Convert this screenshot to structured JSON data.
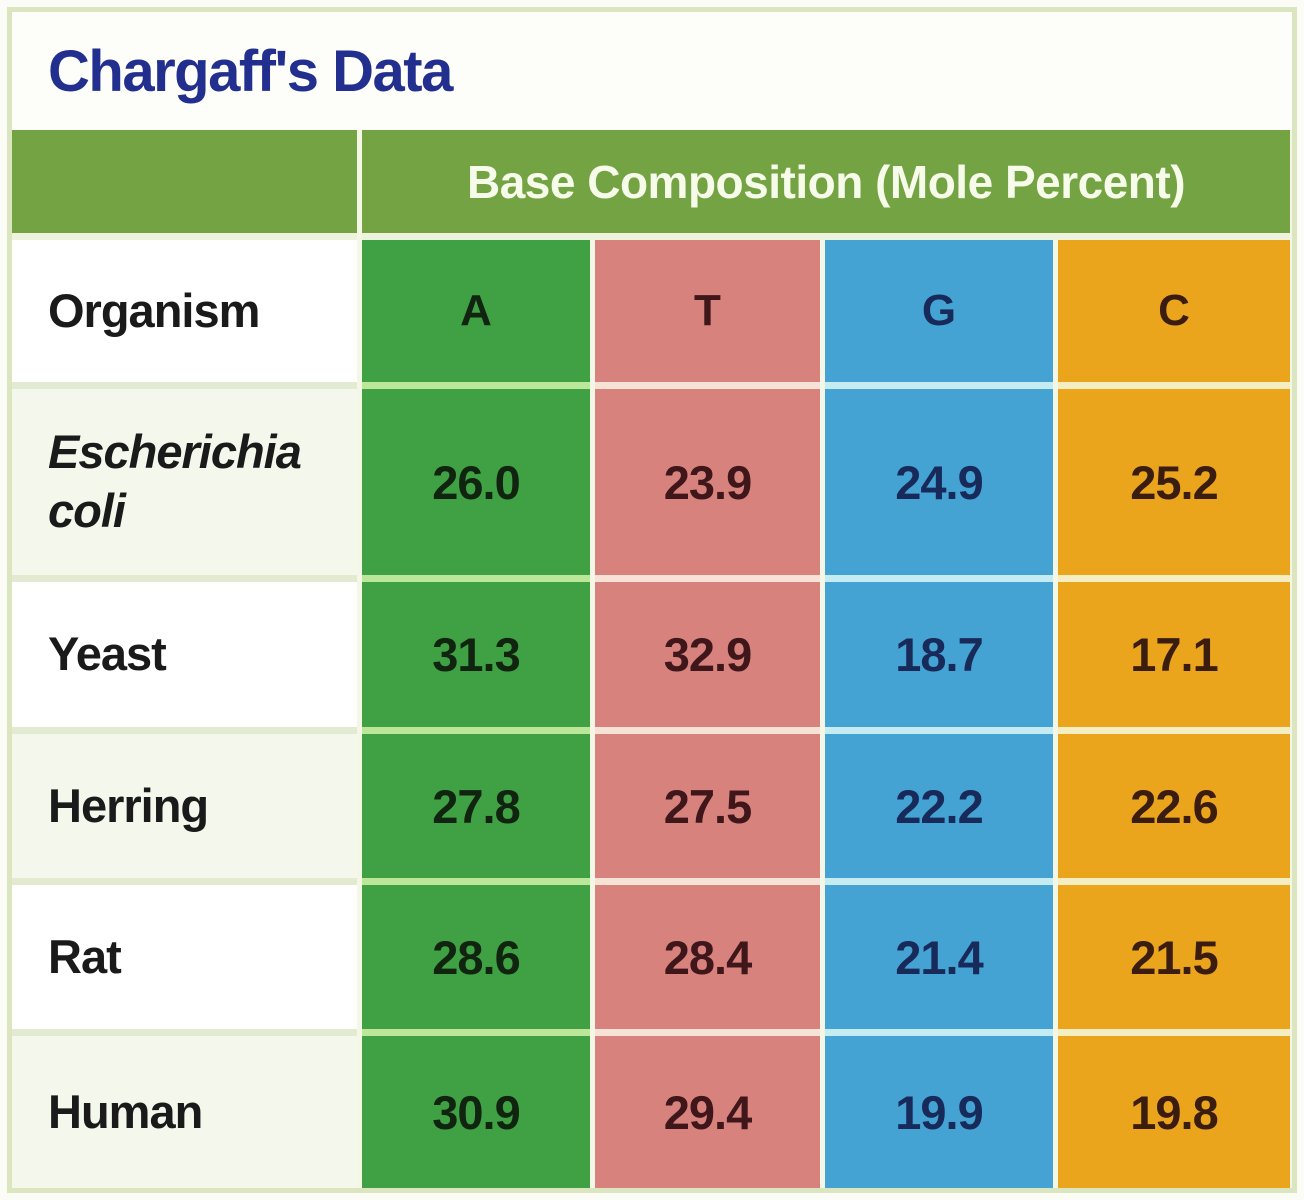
{
  "title": "Chargaff's Data",
  "table": {
    "span_header": "Base Composition (Mole Percent)",
    "organism_header": "Organism",
    "columns": [
      {
        "label": "A",
        "bg": "#3fa044",
        "separator": "#bce798",
        "text": "#10240f"
      },
      {
        "label": "T",
        "bg": "#d8827e",
        "separator": "#f6e3d6",
        "text": "#3f161a"
      },
      {
        "label": "G",
        "bg": "#45a3d4",
        "separator": "#c5ecf2",
        "text": "#172a5a"
      },
      {
        "label": "C",
        "bg": "#eaa51d",
        "separator": "#f5eec2",
        "text": "#3a1d0e"
      }
    ],
    "rows": [
      {
        "organism": "Escherichia coli",
        "italic": true,
        "values": [
          "26.0",
          "23.9",
          "24.9",
          "25.2"
        ]
      },
      {
        "organism": "Yeast",
        "italic": false,
        "values": [
          "31.3",
          "32.9",
          "18.7",
          "17.1"
        ]
      },
      {
        "organism": "Herring",
        "italic": false,
        "values": [
          "27.8",
          "27.5",
          "22.2",
          "22.6"
        ]
      },
      {
        "organism": "Rat",
        "italic": false,
        "values": [
          "28.6",
          "28.4",
          "21.4",
          "21.5"
        ]
      },
      {
        "organism": "Human",
        "italic": false,
        "values": [
          "30.9",
          "29.4",
          "19.9",
          "19.8"
        ]
      }
    ]
  },
  "colors": {
    "title_text": "#232f8e",
    "band_bg": "#74a343",
    "band_text": "#f7fbe9",
    "frame_border": "#dbe6c0",
    "label_tint_bg": "#f4f7eb",
    "label_separator": "#e2ebd2",
    "band_separator": "#edf3dd"
  },
  "chart_data": {
    "type": "table",
    "title": "Chargaff's Data",
    "subtitle": "Base Composition (Mole Percent)",
    "row_header": "Organism",
    "categories": [
      "Escherichia coli",
      "Yeast",
      "Herring",
      "Rat",
      "Human"
    ],
    "series": [
      {
        "name": "A",
        "values": [
          26.0,
          31.3,
          27.8,
          28.6,
          30.9
        ]
      },
      {
        "name": "T",
        "values": [
          23.9,
          32.9,
          27.5,
          28.4,
          29.4
        ]
      },
      {
        "name": "G",
        "values": [
          24.9,
          18.7,
          22.2,
          21.4,
          19.9
        ]
      },
      {
        "name": "C",
        "values": [
          25.2,
          17.1,
          22.6,
          21.5,
          19.8
        ]
      }
    ]
  }
}
